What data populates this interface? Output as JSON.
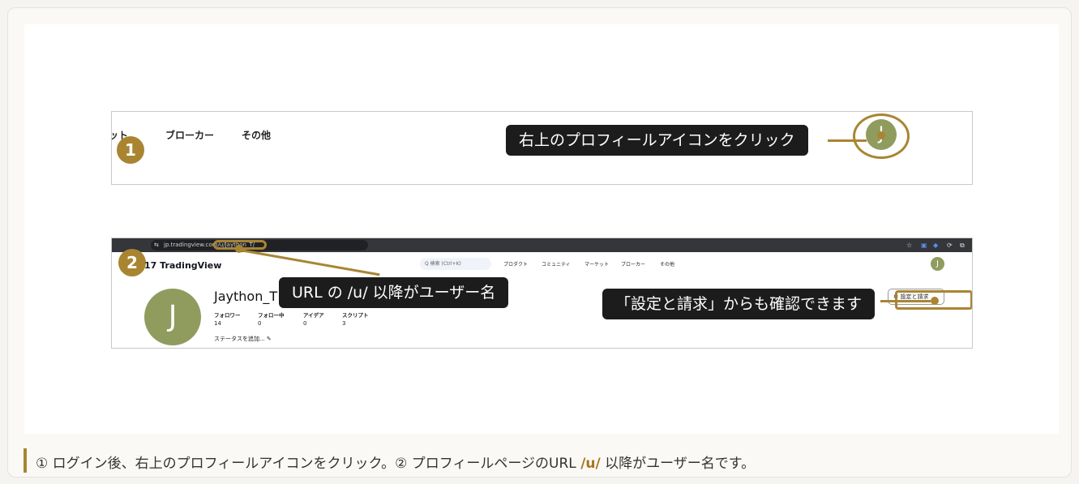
{
  "colors": {
    "accent": "#a98532",
    "callout_bg": "#1c1c1c",
    "avatar": "#8f9c5e"
  },
  "shot1": {
    "nav_partial": "ット",
    "nav_broker": "ブローカー",
    "nav_other": "その他",
    "step": "1",
    "callout": "右上のプロフィールアイコンをクリック",
    "avatar_letter": "J"
  },
  "shot2": {
    "url": "jp.tradingview.com/u/Jaython_T/",
    "url_icon": "⇆",
    "browser_icons": [
      "☆",
      "▣",
      "◆",
      "⟳",
      "⧉"
    ],
    "step": "2",
    "logo_mark": "17",
    "logo_text": "TradingView",
    "search_placeholder": "Q 検索 (Ctrl+K)",
    "nav": [
      "プロダクト",
      "コミュニティ",
      "マーケット",
      "ブローカー",
      "その他"
    ],
    "nav_avatar": "J",
    "username": "Jaython_T",
    "avatar_letter": "J",
    "stats": [
      {
        "label": "フォロワー",
        "value": "14"
      },
      {
        "label": "フォロー中",
        "value": "0"
      },
      {
        "label": "アイデア",
        "value": "0"
      },
      {
        "label": "スクリプト",
        "value": "3"
      }
    ],
    "status_link": "ステータスを追加... ✎",
    "settings_button": "⚙ 設定と請求",
    "callout_url": "URL の /u/ 以降がユーザー名",
    "callout_settings": "「設定と請求」からも確認できます"
  },
  "caption": {
    "before": "① ログイン後、右上のプロフィールアイコンをクリック。② プロフィールページのURL ",
    "highlight": "/u/",
    "after": " 以降がユーザー名です。"
  }
}
